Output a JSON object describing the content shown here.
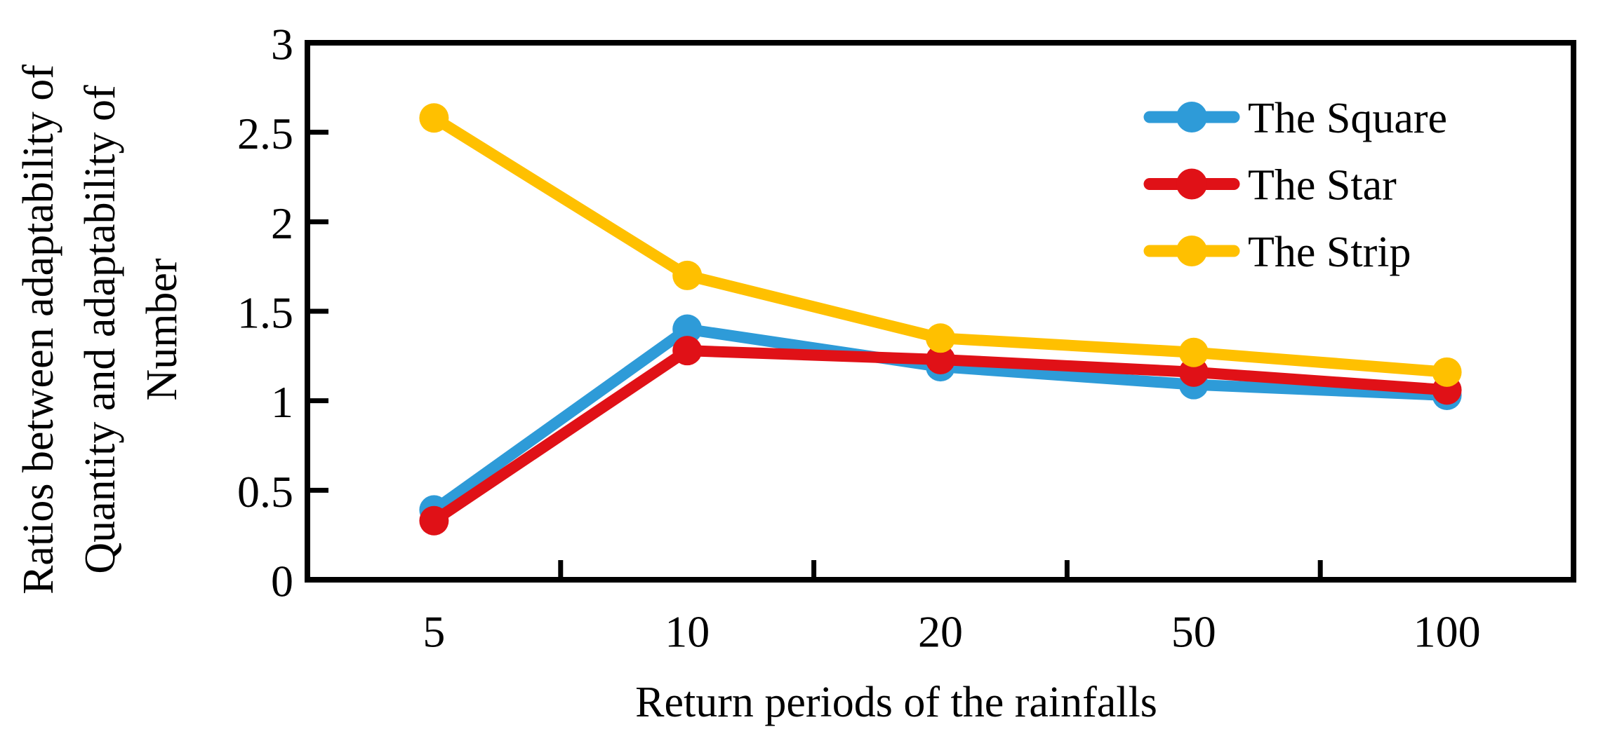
{
  "figure": {
    "background_color": "#FFFFFF",
    "axis_color": "#000000"
  },
  "chart_data": {
    "type": "line",
    "title": "",
    "xlabel": "Return periods of the rainfalls",
    "ylabel": "Ratios between adaptability of Quantity and adaptability of Number",
    "ylabel_lines": [
      "Ratios between adaptability of",
      "Quantity and adaptability of",
      "Number"
    ],
    "x_axis_type": "category",
    "categories": [
      "5",
      "10",
      "20",
      "50",
      "100"
    ],
    "y_ticks": [
      0,
      0.5,
      1,
      1.5,
      2,
      2.5,
      3
    ],
    "y_tick_labels": [
      "0",
      "0.5",
      "1",
      "1.5",
      "2",
      "2.5",
      "3"
    ],
    "ylim": [
      0,
      3
    ],
    "grid": false,
    "marker": "circle",
    "legend_position": "inside-top-right",
    "series": [
      {
        "name": "The Square",
        "color": "#2E9BD8",
        "values": [
          0.39,
          1.4,
          1.19,
          1.09,
          1.03
        ]
      },
      {
        "name": "The Star",
        "color": "#E01117",
        "values": [
          0.33,
          1.28,
          1.23,
          1.16,
          1.06
        ]
      },
      {
        "name": "The Strip",
        "color": "#FFC000",
        "values": [
          2.58,
          1.7,
          1.35,
          1.27,
          1.16
        ]
      }
    ]
  }
}
